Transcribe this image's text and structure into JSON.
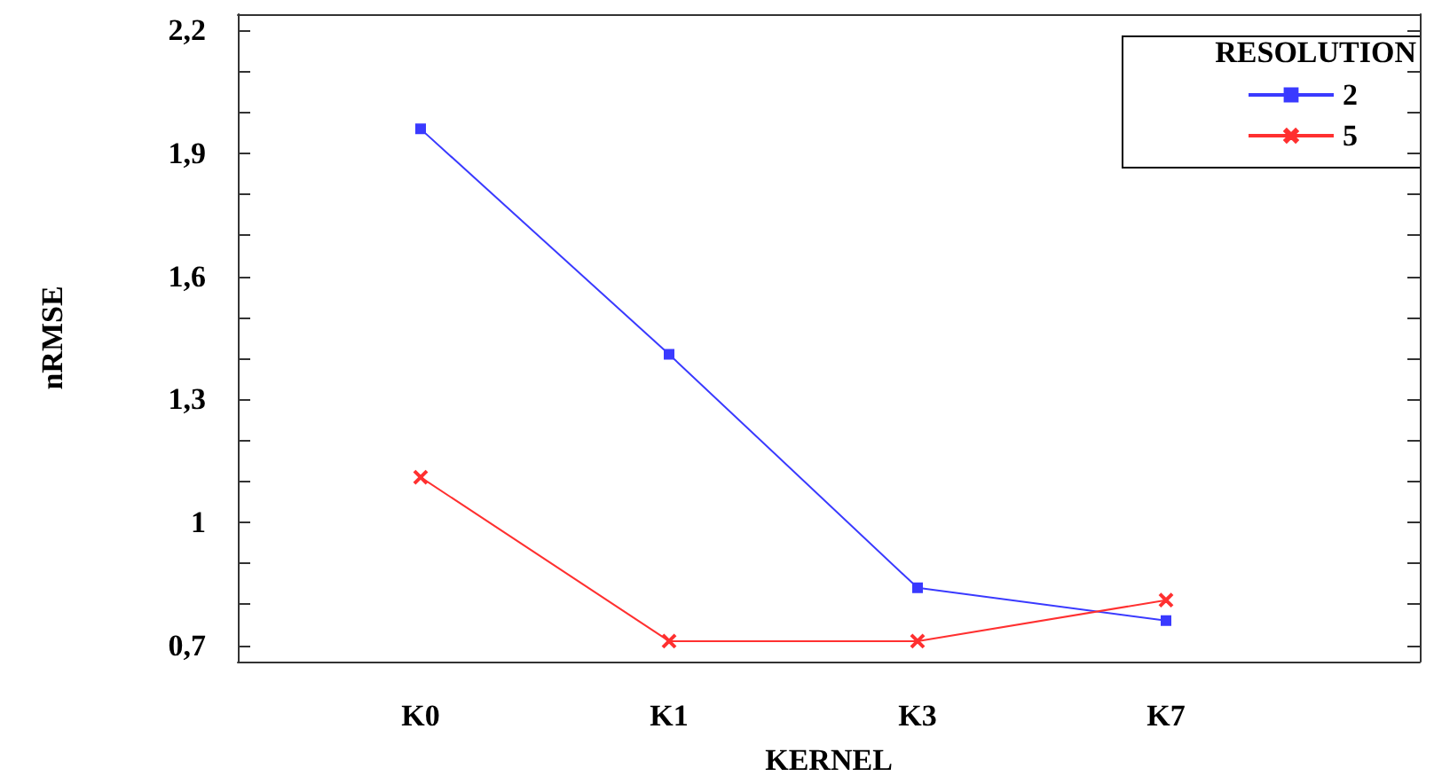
{
  "chart_data": {
    "type": "line",
    "xlabel": "KERNEL",
    "ylabel": "nRMSE",
    "legend_title": "RESOLUTION",
    "categories": [
      "K0",
      "K1",
      "K3",
      "K7"
    ],
    "series": [
      {
        "name": "2",
        "color": "#3a3aff",
        "marker": "square",
        "values": [
          1.96,
          1.41,
          0.84,
          0.76
        ]
      },
      {
        "name": "5",
        "color": "#ff3030",
        "marker": "cross",
        "values": [
          1.11,
          0.71,
          0.71,
          0.81
        ]
      }
    ],
    "ylim": [
      0.66,
      2.24
    ],
    "yticks": [
      {
        "value": 0.7,
        "label": "0,7"
      },
      {
        "value": 0.8,
        "label": null
      },
      {
        "value": 0.9,
        "label": null
      },
      {
        "value": 1,
        "label": "1"
      },
      {
        "value": 1.1,
        "label": null
      },
      {
        "value": 1.2,
        "label": null
      },
      {
        "value": 1.3,
        "label": "1,3"
      },
      {
        "value": 1.4,
        "label": null
      },
      {
        "value": 1.5,
        "label": null
      },
      {
        "value": 1.6,
        "label": "1,6"
      },
      {
        "value": 1.7,
        "label": null
      },
      {
        "value": 1.8,
        "label": null
      },
      {
        "value": 1.9,
        "label": "1,9"
      },
      {
        "value": 2,
        "label": null
      },
      {
        "value": 2.1,
        "label": null
      },
      {
        "value": 2.2,
        "label": "2,2"
      }
    ],
    "grid": false,
    "legend": "top right",
    "line_style": "solid"
  }
}
